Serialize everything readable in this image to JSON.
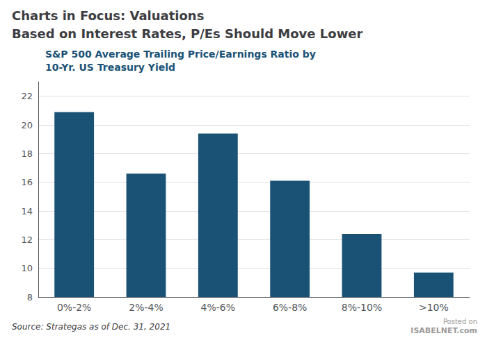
{
  "chart_data": {
    "type": "bar",
    "title": "Charts in Focus: Valuations",
    "subtitle": "Based on Interest Rates, P/Es Should Move Lower",
    "annotations": [
      "S&P 500 Average Trailing Price/Earnings Ratio by",
      "10-Yr. US Treasury Yield",
      "Source: Strategas as of Dec. 31, 2021",
      "Posted on",
      "ISABELNET.com"
    ],
    "categories": [
      "0%-2%",
      "2%-4%",
      "4%-6%",
      "6%-8%",
      "8%-10%",
      ">10%"
    ],
    "values": [
      20.9,
      16.6,
      19.4,
      16.1,
      12.4,
      9.7
    ],
    "color": "#1a5276",
    "ylim": [
      8,
      23
    ],
    "yticks": [
      8,
      10,
      12,
      14,
      16,
      18,
      20,
      22
    ],
    "grid": true
  }
}
